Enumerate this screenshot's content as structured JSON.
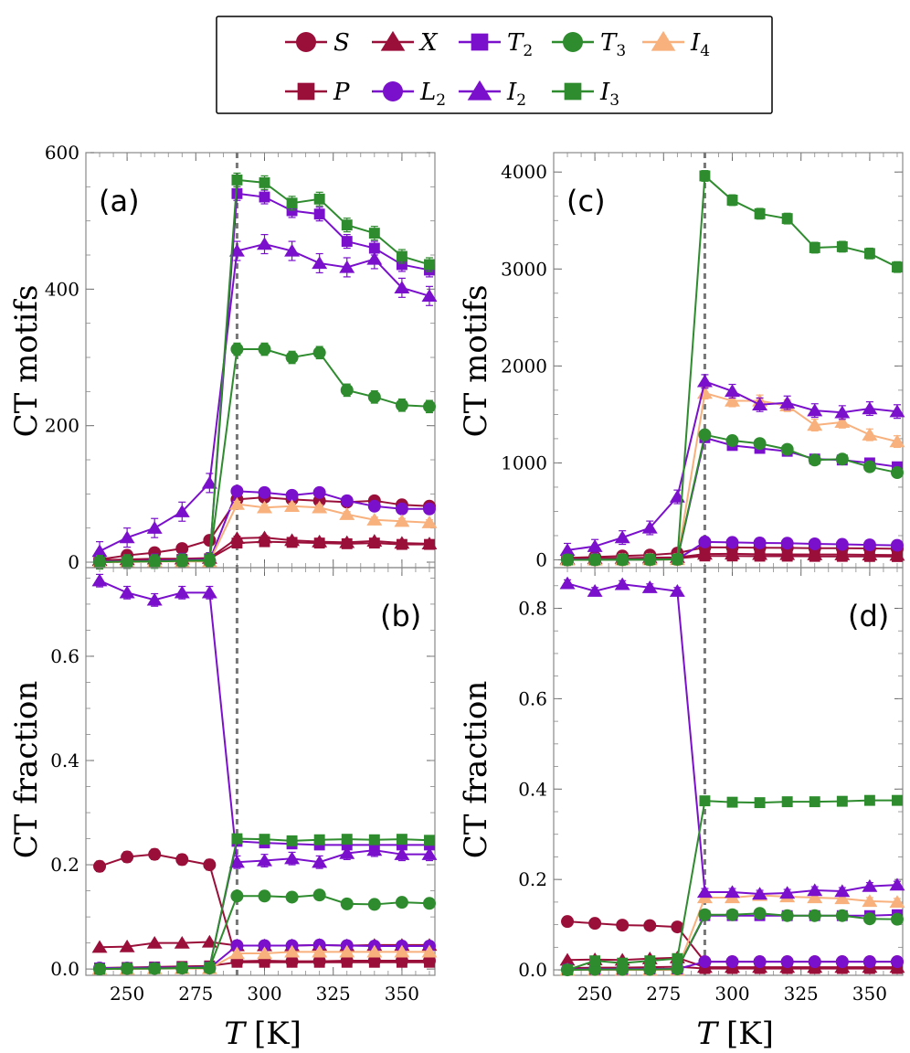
{
  "legend": {
    "entries": [
      {
        "key": "S",
        "label": "S",
        "sub": ""
      },
      {
        "key": "X",
        "label": "X",
        "sub": ""
      },
      {
        "key": "T2",
        "label": "T",
        "sub": "2"
      },
      {
        "key": "T3",
        "label": "T",
        "sub": "3"
      },
      {
        "key": "I4",
        "label": "I",
        "sub": "4"
      },
      {
        "key": "P",
        "label": "P",
        "sub": ""
      },
      {
        "key": "L2",
        "label": "L",
        "sub": "2"
      },
      {
        "key": "I2",
        "label": "I",
        "sub": "2"
      },
      {
        "key": "I3",
        "label": "I",
        "sub": "3"
      }
    ]
  },
  "series_styles": {
    "S": {
      "color": "#9a0f3a",
      "marker": "circle"
    },
    "X": {
      "color": "#9a0f3a",
      "marker": "triangle"
    },
    "P": {
      "color": "#9a0f3a",
      "marker": "square"
    },
    "T2": {
      "color": "#7a0fcc",
      "marker": "square"
    },
    "L2": {
      "color": "#7a0fcc",
      "marker": "circle"
    },
    "I2": {
      "color": "#7a0fcc",
      "marker": "triangle"
    },
    "T3": {
      "color": "#2e8b2e",
      "marker": "circle"
    },
    "I3": {
      "color": "#2e8b2e",
      "marker": "square"
    },
    "I4": {
      "color": "#f8b07c",
      "marker": "triangle"
    }
  },
  "axis_labels": {
    "x_T": "T",
    "x_unit": "[K]",
    "y_top": "CT motifs",
    "y_bottom": "CT fraction"
  },
  "chart_data": [
    {
      "panel": "(a)",
      "type": "line",
      "x": [
        240,
        250,
        260,
        270,
        280,
        290,
        300,
        310,
        320,
        330,
        340,
        350,
        360
      ],
      "xlim": [
        235,
        362
      ],
      "ylim": [
        -8,
        600
      ],
      "xticks": [
        250,
        275,
        300,
        325,
        350
      ],
      "xtick_labels": [
        "250",
        "275",
        "300",
        "325",
        "350"
      ],
      "yticks": [
        0,
        200,
        400,
        600
      ],
      "ytick_labels": [
        "0",
        "200",
        "400",
        "600"
      ],
      "vline": 290,
      "series": [
        {
          "key": "P",
          "values": [
            2,
            3,
            3,
            4,
            5,
            28,
            30,
            29,
            28,
            27,
            28,
            26,
            26
          ],
          "err": 3
        },
        {
          "key": "X",
          "values": [
            3,
            4,
            5,
            5,
            6,
            35,
            36,
            32,
            30,
            29,
            31,
            28,
            27
          ],
          "err": 3
        },
        {
          "key": "S",
          "values": [
            4,
            10,
            14,
            20,
            32,
            92,
            95,
            92,
            90,
            88,
            90,
            84,
            82
          ],
          "err": 4
        },
        {
          "key": "L2",
          "values": [
            1,
            1,
            2,
            2,
            2,
            104,
            102,
            98,
            102,
            90,
            82,
            78,
            78
          ],
          "err": 4
        },
        {
          "key": "I4",
          "values": [
            0,
            0,
            1,
            1,
            1,
            85,
            80,
            82,
            80,
            70,
            62,
            60,
            58
          ],
          "err": 4
        },
        {
          "key": "I2",
          "values": [
            16,
            36,
            50,
            74,
            116,
            456,
            466,
            456,
            438,
            432,
            444,
            402,
            390
          ],
          "err": 14
        },
        {
          "key": "T2",
          "values": [
            1,
            1,
            2,
            3,
            4,
            540,
            535,
            515,
            510,
            470,
            460,
            436,
            428
          ],
          "err": 10
        },
        {
          "key": "T3",
          "values": [
            0,
            1,
            1,
            2,
            2,
            312,
            312,
            300,
            307,
            252,
            242,
            230,
            228
          ],
          "err": 9
        },
        {
          "key": "I3",
          "values": [
            0,
            1,
            1,
            2,
            3,
            560,
            556,
            526,
            532,
            494,
            482,
            448,
            436
          ],
          "err": 10
        }
      ]
    },
    {
      "panel": "(b)",
      "type": "line",
      "x": [
        240,
        250,
        260,
        270,
        280,
        290,
        300,
        310,
        320,
        330,
        340,
        350,
        360
      ],
      "xlim": [
        235,
        362
      ],
      "ylim": [
        -0.012,
        0.77
      ],
      "xticks": [
        250,
        275,
        300,
        325,
        350
      ],
      "xtick_labels": [
        "250",
        "275",
        "300",
        "325",
        "350"
      ],
      "yticks": [
        0.0,
        0.2,
        0.4,
        0.6
      ],
      "ytick_labels": [
        "0.0",
        "0.2",
        "0.4",
        "0.6"
      ],
      "vline": 290,
      "series": [
        {
          "key": "P",
          "values": [
            0.002,
            0.003,
            0.004,
            0.005,
            0.006,
            0.013,
            0.013,
            0.013,
            0.013,
            0.013,
            0.013,
            0.013,
            0.013
          ],
          "err": 0.002
        },
        {
          "key": "X",
          "values": [
            0.042,
            0.043,
            0.05,
            0.05,
            0.052,
            0.045,
            0.045,
            0.045,
            0.046,
            0.045,
            0.046,
            0.046,
            0.046
          ],
          "err": 0.003
        },
        {
          "key": "S",
          "values": [
            0.197,
            0.215,
            0.22,
            0.21,
            0.2,
            0.015,
            0.016,
            0.015,
            0.015,
            0.016,
            0.016,
            0.016,
            0.016
          ],
          "err": 0.01
        },
        {
          "key": "L2",
          "values": [
            0.002,
            0.002,
            0.002,
            0.002,
            0.002,
            0.045,
            0.045,
            0.045,
            0.046,
            0.045,
            0.044,
            0.044,
            0.044
          ],
          "err": 0.003
        },
        {
          "key": "I4",
          "values": [
            0.0,
            0.0,
            0.001,
            0.001,
            0.001,
            0.03,
            0.03,
            0.033,
            0.033,
            0.033,
            0.033,
            0.033,
            0.033
          ],
          "err": 0.003
        },
        {
          "key": "I2",
          "values": [
            0.745,
            0.722,
            0.708,
            0.722,
            0.722,
            0.205,
            0.208,
            0.212,
            0.205,
            0.222,
            0.228,
            0.22,
            0.22
          ],
          "err": 0.012
        },
        {
          "key": "T2",
          "values": [
            0.002,
            0.002,
            0.003,
            0.003,
            0.004,
            0.245,
            0.242,
            0.24,
            0.238,
            0.238,
            0.238,
            0.238,
            0.238
          ],
          "err": 0.006
        },
        {
          "key": "T3",
          "values": [
            0.0,
            0.001,
            0.001,
            0.002,
            0.002,
            0.14,
            0.14,
            0.138,
            0.142,
            0.125,
            0.124,
            0.128,
            0.126
          ],
          "err": 0.005
        },
        {
          "key": "I3",
          "values": [
            0.0,
            0.001,
            0.001,
            0.002,
            0.003,
            0.25,
            0.249,
            0.246,
            0.248,
            0.249,
            0.248,
            0.249,
            0.247
          ],
          "err": 0.006
        }
      ]
    },
    {
      "panel": "(c)",
      "type": "line",
      "x": [
        240,
        250,
        260,
        270,
        280,
        290,
        300,
        310,
        320,
        330,
        340,
        350,
        360
      ],
      "xlim": [
        235,
        362
      ],
      "ylim": [
        -80,
        4200
      ],
      "xticks": [
        250,
        275,
        300,
        325,
        350
      ],
      "xtick_labels": [
        "250",
        "275",
        "300",
        "325",
        "350"
      ],
      "yticks": [
        0,
        1000,
        2000,
        3000,
        4000
      ],
      "ytick_labels": [
        "0",
        "1000",
        "2000",
        "3000",
        "4000"
      ],
      "vline": 290,
      "series": [
        {
          "key": "P",
          "values": [
            5,
            8,
            10,
            12,
            15,
            40,
            40,
            38,
            38,
            36,
            36,
            35,
            34
          ],
          "err": 20
        },
        {
          "key": "X",
          "values": [
            10,
            15,
            18,
            22,
            26,
            60,
            62,
            58,
            57,
            55,
            55,
            52,
            50
          ],
          "err": 20
        },
        {
          "key": "S",
          "values": [
            20,
            30,
            40,
            50,
            70,
            130,
            128,
            125,
            124,
            120,
            120,
            118,
            115
          ],
          "err": 25
        },
        {
          "key": "L2",
          "values": [
            2,
            3,
            4,
            5,
            6,
            185,
            180,
            175,
            172,
            165,
            160,
            155,
            150
          ],
          "err": 25
        },
        {
          "key": "I4",
          "values": [
            0,
            1,
            2,
            3,
            4,
            1720,
            1640,
            1640,
            1590,
            1390,
            1420,
            1290,
            1220
          ],
          "err": 60
        },
        {
          "key": "I2",
          "values": [
            100,
            140,
            230,
            330,
            650,
            1840,
            1740,
            1600,
            1620,
            1540,
            1520,
            1560,
            1530
          ],
          "err": 70
        },
        {
          "key": "T2",
          "values": [
            1,
            2,
            3,
            4,
            6,
            1260,
            1180,
            1150,
            1120,
            1040,
            1030,
            1000,
            960
          ],
          "err": 40
        },
        {
          "key": "T3",
          "values": [
            0,
            1,
            2,
            3,
            5,
            1290,
            1230,
            1200,
            1140,
            1030,
            1040,
            960,
            900
          ],
          "err": 40
        },
        {
          "key": "I3",
          "values": [
            0,
            1,
            2,
            3,
            6,
            3960,
            3710,
            3570,
            3520,
            3220,
            3230,
            3160,
            3020
          ],
          "err": 55
        }
      ]
    },
    {
      "panel": "(d)",
      "type": "line",
      "x": [
        240,
        250,
        260,
        270,
        280,
        290,
        300,
        310,
        320,
        330,
        340,
        350,
        360
      ],
      "xlim": [
        235,
        362
      ],
      "ylim": [
        -0.012,
        0.89
      ],
      "xticks": [
        250,
        275,
        300,
        325,
        350
      ],
      "xtick_labels": [
        "250",
        "275",
        "300",
        "325",
        "350"
      ],
      "yticks": [
        0.0,
        0.2,
        0.4,
        0.6,
        0.8
      ],
      "ytick_labels": [
        "0.0",
        "0.2",
        "0.4",
        "0.6",
        "0.8"
      ],
      "vline": 290,
      "series": [
        {
          "key": "P",
          "values": [
            0.004,
            0.005,
            0.005,
            0.006,
            0.007,
            0.003,
            0.003,
            0.003,
            0.003,
            0.003,
            0.003,
            0.003,
            0.003
          ],
          "err": 0.002
        },
        {
          "key": "X",
          "values": [
            0.022,
            0.023,
            0.022,
            0.025,
            0.027,
            0.006,
            0.006,
            0.006,
            0.006,
            0.006,
            0.006,
            0.006,
            0.006
          ],
          "err": 0.002
        },
        {
          "key": "S",
          "values": [
            0.107,
            0.103,
            0.099,
            0.098,
            0.095,
            0.018,
            0.018,
            0.018,
            0.018,
            0.018,
            0.018,
            0.018,
            0.018
          ],
          "err": 0.004
        },
        {
          "key": "L2",
          "values": [
            0.001,
            0.002,
            0.002,
            0.002,
            0.002,
            0.018,
            0.018,
            0.018,
            0.018,
            0.018,
            0.018,
            0.018,
            0.018
          ],
          "err": 0.002
        },
        {
          "key": "I4",
          "values": [
            0.0,
            0.0,
            0.0,
            0.0,
            0.0,
            0.16,
            0.16,
            0.165,
            0.162,
            0.16,
            0.158,
            0.152,
            0.15
          ],
          "err": 0.008
        },
        {
          "key": "I2",
          "values": [
            0.855,
            0.838,
            0.853,
            0.846,
            0.838,
            0.172,
            0.172,
            0.168,
            0.17,
            0.176,
            0.174,
            0.185,
            0.188
          ],
          "err": 0.008
        },
        {
          "key": "T2",
          "values": [
            0.001,
            0.001,
            0.001,
            0.002,
            0.002,
            0.12,
            0.12,
            0.12,
            0.12,
            0.12,
            0.12,
            0.12,
            0.122
          ],
          "err": 0.004
        },
        {
          "key": "T3",
          "values": [
            0.0,
            0.001,
            0.001,
            0.001,
            0.002,
            0.122,
            0.122,
            0.125,
            0.12,
            0.12,
            0.12,
            0.113,
            0.112
          ],
          "err": 0.004
        },
        {
          "key": "I3",
          "values": [
            0.0,
            0.02,
            0.015,
            0.02,
            0.025,
            0.374,
            0.371,
            0.37,
            0.372,
            0.372,
            0.373,
            0.375,
            0.375
          ],
          "err": 0.004
        }
      ]
    }
  ]
}
